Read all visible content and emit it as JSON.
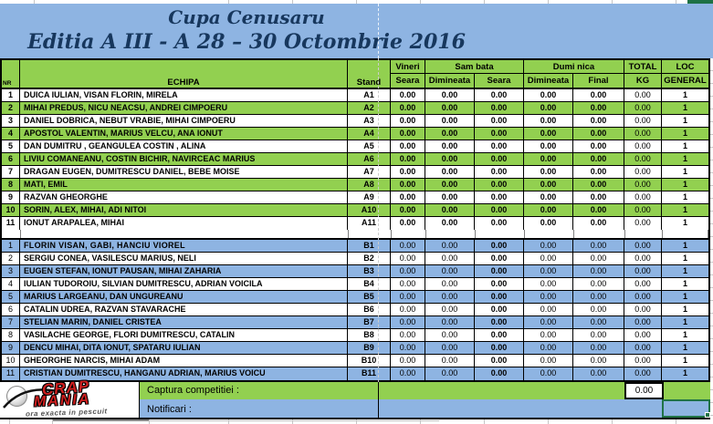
{
  "title": {
    "line1": "Cupa Cenusaru",
    "line2": "Editia A III - A 28 – 30 Octombrie 2016"
  },
  "table": {
    "headers": {
      "nr": "NR",
      "echipa": "ECHIPA",
      "stand": "Stand",
      "vineri": "Vineri",
      "sambata": "Sam bata",
      "duminica": "Dumi nica",
      "total": "TOTAL",
      "loc": "LOC",
      "vineri_seara": "Seara",
      "sambata_dimineata": "Dimineata",
      "sambata_seara": "Seara",
      "duminica_dimineata": "Dimineata",
      "duminica_final": "Final",
      "kg": "KG",
      "general": "GENERAL"
    },
    "group_a": [
      {
        "nr": "1",
        "echipa": "DUICA IULIAN, VISAN FLORIN, MIRELA",
        "stand": "A1",
        "scores": [
          "0.00",
          "0.00",
          "0.00",
          "0.00",
          "0.00"
        ],
        "total": "0.00",
        "loc": "1"
      },
      {
        "nr": "2",
        "echipa": "MIHAI PREDUS, NICU NEACSU, ANDREI CIMPOERU",
        "stand": "A2",
        "scores": [
          "0.00",
          "0.00",
          "0.00",
          "0.00",
          "0.00"
        ],
        "total": "0.00",
        "loc": "1"
      },
      {
        "nr": "3",
        "echipa": "DANIEL DOBRICA, NEBUT VRABIE, MIHAI CIMPOERU",
        "stand": "A3",
        "scores": [
          "0.00",
          "0.00",
          "0.00",
          "0.00",
          "0.00"
        ],
        "total": "0.00",
        "loc": "1"
      },
      {
        "nr": "4",
        "echipa": "APOSTOL VALENTIN, MARIUS VELCU, ANA IONUT",
        "stand": "A4",
        "scores": [
          "0.00",
          "0.00",
          "0.00",
          "0.00",
          "0.00"
        ],
        "total": "0.00",
        "loc": "1"
      },
      {
        "nr": "5",
        "echipa": "DAN DUMITRU ,  GEANGULEA COSTIN ,  ALINA",
        "stand": "A5",
        "scores": [
          "0.00",
          "0.00",
          "0.00",
          "0.00",
          "0.00"
        ],
        "total": "0.00",
        "loc": "1"
      },
      {
        "nr": "6",
        "echipa": "LIVIU COMANEANU, COSTIN BICHIR, NAVIRCEAC MARIUS",
        "stand": "A6",
        "scores": [
          "0.00",
          "0.00",
          "0.00",
          "0.00",
          "0.00"
        ],
        "total": "0.00",
        "loc": "1"
      },
      {
        "nr": "7",
        "echipa": "DRAGAN EUGEN, DUMITRESCU DANIEL, BEBE MOISE",
        "stand": "A7",
        "scores": [
          "0.00",
          "0.00",
          "0.00",
          "0.00",
          "0.00"
        ],
        "total": "0.00",
        "loc": "1"
      },
      {
        "nr": "8",
        "echipa": "MATI, EMIL",
        "stand": "A8",
        "scores": [
          "0.00",
          "0.00",
          "0.00",
          "0.00",
          "0.00"
        ],
        "total": "0.00",
        "loc": "1"
      },
      {
        "nr": "9",
        "echipa": "RAZVAN GHEORGHE",
        "stand": "A9",
        "scores": [
          "0.00",
          "0.00",
          "0.00",
          "0.00",
          "0.00"
        ],
        "total": "0.00",
        "loc": "1"
      },
      {
        "nr": "10",
        "echipa": "SORIN, ALEX, MIHAI, ADI NITOI",
        "stand": "A10",
        "scores": [
          "0.00",
          "0.00",
          "0.00",
          "0.00",
          "0.00"
        ],
        "total": "0.00",
        "loc": "1"
      },
      {
        "nr": "11",
        "echipa": "IONUT ARAPALEA, MIHAI",
        "stand": "A11",
        "scores": [
          "0.00",
          "0.00",
          "0.00",
          "0.00",
          "0.00"
        ],
        "total": "0.00",
        "loc": "1"
      }
    ],
    "group_b": [
      {
        "nr": "1",
        "echipa": "FLORIN VISAN, GABI, HANCIU VIOREL",
        "stand": "B1",
        "scores": [
          "0.00",
          "0.00",
          "0.00",
          "0.00",
          "0.00"
        ],
        "total": "0.00",
        "loc": "1",
        "bold": true
      },
      {
        "nr": "2",
        "echipa": "SERGIU CONEA, VASILESCU MARIUS, NELI",
        "stand": "B2",
        "scores": [
          "0.00",
          "0.00",
          "0.00",
          "0.00",
          "0.00"
        ],
        "total": "0.00",
        "loc": "1"
      },
      {
        "nr": "3",
        "echipa": "EUGEN STEFAN, IONUT PAUSAN, MIHAI ZAHARIA",
        "stand": "B3",
        "scores": [
          "0.00",
          "0.00",
          "0.00",
          "0.00",
          "0.00"
        ],
        "total": "0.00",
        "loc": "1"
      },
      {
        "nr": "4",
        "echipa": "IULIAN TUDOROIU, SILVIAN DUMITRESCU, ADRIAN VOICILA",
        "stand": "B4",
        "scores": [
          "0.00",
          "0.00",
          "0.00",
          "0.00",
          "0.00"
        ],
        "total": "0.00",
        "loc": "1"
      },
      {
        "nr": "5",
        "echipa": "MARIUS LARGEANU, DAN UNGUREANU",
        "stand": "B5",
        "scores": [
          "0.00",
          "0.00",
          "0.00",
          "0.00",
          "0.00"
        ],
        "total": "0.00",
        "loc": "1"
      },
      {
        "nr": "6",
        "echipa": "CATALIN UDREA, RAZVAN STAVARACHE",
        "stand": "B6",
        "scores": [
          "0.00",
          "0.00",
          "0.00",
          "0.00",
          "0.00"
        ],
        "total": "0.00",
        "loc": "1"
      },
      {
        "nr": "7",
        "echipa": "STELIAN MARIN, DANIEL CRISTEA",
        "stand": "B7",
        "scores": [
          "0.00",
          "0.00",
          "0.00",
          "0.00",
          "0.00"
        ],
        "total": "0.00",
        "loc": "1"
      },
      {
        "nr": "8",
        "echipa": "VASILACHE GEORGE, FLORI DUMITRESCU, CATALIN",
        "stand": "B8",
        "scores": [
          "0.00",
          "0.00",
          "0.00",
          "0.00",
          "0.00"
        ],
        "total": "0.00",
        "loc": "1"
      },
      {
        "nr": "9",
        "echipa": "DENCU MIHAI, DITA IONUT, SPATARU IULIAN",
        "stand": "B9",
        "scores": [
          "0.00",
          "0.00",
          "0.00",
          "0.00",
          "0.00"
        ],
        "total": "0.00",
        "loc": "1"
      },
      {
        "nr": "10",
        "echipa": "GHEORGHE NARCIS, MIHAI ADAM",
        "stand": "B10",
        "scores": [
          "0.00",
          "0.00",
          "0.00",
          "0.00",
          "0.00"
        ],
        "total": "0.00",
        "loc": "1"
      },
      {
        "nr": "11",
        "echipa": "CRISTIAN DUMITRESCU, HANGANU ADRIAN, MARIUS VOICU",
        "stand": "B11",
        "scores": [
          "0.00",
          "0.00",
          "0.00",
          "0.00",
          "0.00"
        ],
        "total": "0.00",
        "loc": "1"
      }
    ]
  },
  "footer": {
    "captura_label": "Captura competitiei :",
    "captura_value": "0.00",
    "notificari_label": "Notificari :"
  },
  "logo": {
    "word1": "CRAP",
    "word2": "MANIA",
    "tagline": "ora exacta in pescuit"
  },
  "colors": {
    "green": "#92d050",
    "blue": "#8eb4e2",
    "title_text": "#17375d",
    "dark_green": "#1e7145",
    "selection_border": "#217346",
    "logo_red": "#cf1f1f"
  }
}
